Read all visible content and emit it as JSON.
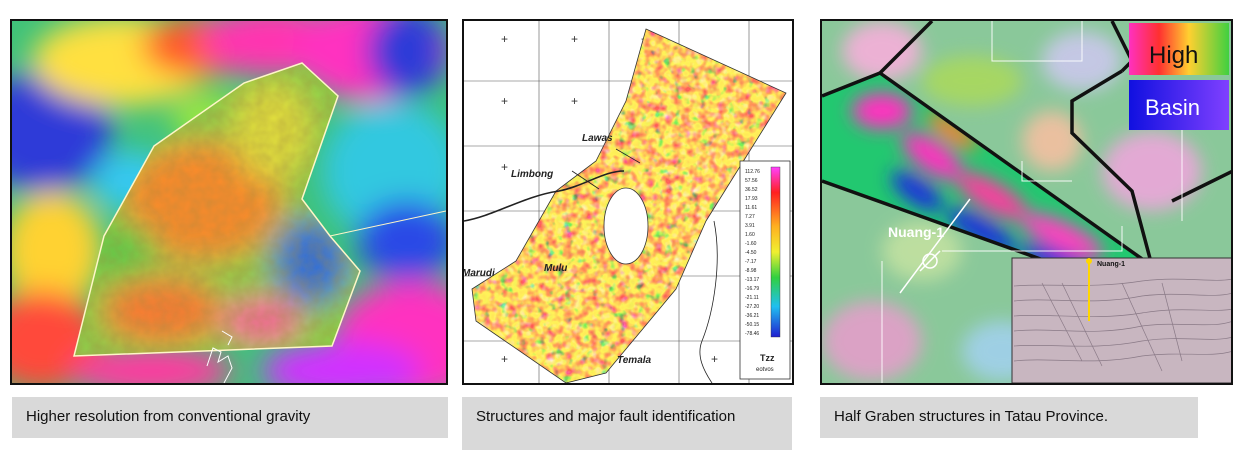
{
  "panels": [
    {
      "caption": "Higher resolution from conventional gravity"
    },
    {
      "caption": "Structures and major fault identification",
      "towns": [
        "Lawas",
        "Limbong",
        "Mulu",
        "Marudi",
        "Temala"
      ],
      "legend": {
        "title": "Tzz",
        "unit": "eotvos",
        "values": [
          "112.76",
          "57.56",
          "36.52",
          "17.93",
          "11.61",
          "7.27",
          "3.91",
          "1.60",
          "-1.60",
          "-4.50",
          "-7.17",
          "-8.98",
          "-13.17",
          "-16.79",
          "-21.11",
          "-27.20",
          "-36.21",
          "-50.15",
          "-78.46"
        ]
      }
    },
    {
      "caption": "Half Graben structures in Tatau Province.",
      "well_label": "Nuang-1",
      "legend": {
        "high": "High",
        "basin": "Basin"
      },
      "inset_label": "Nuang-1"
    }
  ],
  "colors": {
    "caption_bg": "#d9d9d9",
    "gravity_high": "#ff30c0",
    "gravity_low": "#1f3fd8"
  }
}
